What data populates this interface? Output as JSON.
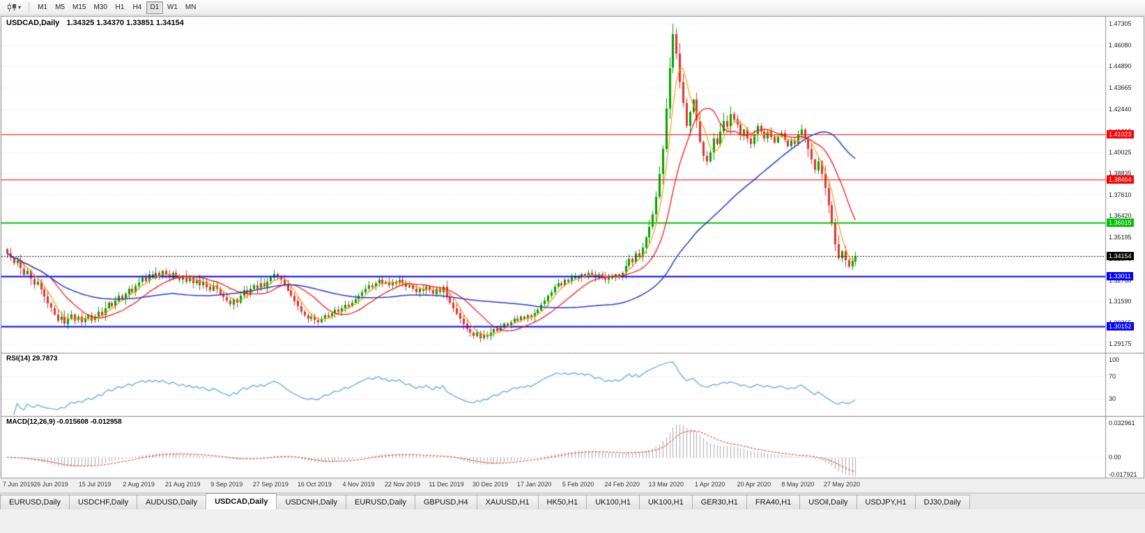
{
  "toolbar": {
    "chart_type_icon": "candlestick-chart-icon",
    "dropdown_icon": "chevron-down-icon",
    "timeframes": [
      "M1",
      "M5",
      "M15",
      "M30",
      "H1",
      "H4",
      "D1",
      "W1",
      "MN"
    ],
    "active_timeframe": "D1"
  },
  "main_chart": {
    "title": "USDCAD,Daily",
    "ohlc": "1.34325 1.34370 1.33851 1.34154"
  },
  "rsi_panel": {
    "label": "RSI(14) 29.7873"
  },
  "macd_panel": {
    "label": "MACD(12,26,9) -0.015608 -0.012958"
  },
  "bottom_tabs": {
    "active_index": 3,
    "items": [
      "EURUSD,Daily",
      "USDCHF,Daily",
      "AUDUSD,Daily",
      "USDCAD,Daily",
      "USDCNH,Daily",
      "EURUSD,Daily",
      "GBPUSD,H4",
      "XAUUSD,H1",
      "HK50,H1",
      "UK100,H1",
      "UK100,H1",
      "GER30,H1",
      "FRA40,H1",
      "USOil,Daily",
      "USDJPY,H1",
      "DJ30,Daily"
    ]
  },
  "colors": {
    "bull": "#00a000",
    "bear": "#e03030",
    "ma_fast_orange": "#ff9900",
    "ma_mid_red": "#ff0000",
    "ma_slow_blue": "#2236cc",
    "rsi_line": "#4da3d8",
    "macd_hist": "#a9a9a9",
    "macd_signal": "#dd2222",
    "level_red": "#ff0000",
    "level_green": "#00c000",
    "level_blue": "#0000ff",
    "grid": "#dcdcdc",
    "panel_border": "#8e8e8e"
  },
  "chart_data": [
    {
      "type": "candlestick",
      "title": "USDCAD,Daily",
      "timeframe": "D1",
      "x_labels": [
        "7 Jun 2019",
        "26 Jun 2019",
        "15 Jul 2019",
        "2 Aug 2019",
        "21 Aug 2019",
        "9 Sep 2019",
        "27 Sep 2019",
        "16 Oct 2019",
        "4 Nov 2019",
        "22 Nov 2019",
        "11 Dec 2019",
        "30 Dec 2019",
        "17 Jan 2020",
        "5 Feb 2020",
        "24 Feb 2020",
        "13 Mar 2020",
        "1 Apr 2020",
        "20 Apr 2020",
        "8 May 2020",
        "27 May 2020"
      ],
      "bars_per_label": 13,
      "y_ticks": [
        1.47305,
        1.4608,
        1.4489,
        1.43665,
        1.4244,
        1.41215,
        1.40025,
        1.38835,
        1.3761,
        1.3642,
        1.35195,
        1.3397,
        1.3278,
        1.3159,
        1.30365,
        1.29175
      ],
      "ylim": [
        1.287,
        1.477
      ],
      "first_open": 1.3455,
      "closes": [
        1.343,
        1.3405,
        1.3375,
        1.339,
        1.3345,
        1.331,
        1.333,
        1.3285,
        1.3255,
        1.327,
        1.3225,
        1.3185,
        1.3145,
        1.312,
        1.3085,
        1.305,
        1.307,
        1.303,
        1.306,
        1.3085,
        1.305,
        1.307,
        1.304,
        1.306,
        1.308,
        1.305,
        1.307,
        1.31,
        1.308,
        1.312,
        1.315,
        1.313,
        1.316,
        1.319,
        1.317,
        1.32,
        1.323,
        1.321,
        1.3245,
        1.3265,
        1.329,
        1.327,
        1.331,
        1.329,
        1.332,
        1.33,
        1.333,
        1.331,
        1.329,
        1.332,
        1.33,
        1.328,
        1.33,
        1.327,
        1.329,
        1.326,
        1.328,
        1.325,
        1.327,
        1.324,
        1.322,
        1.325,
        1.323,
        1.32,
        1.318,
        1.316,
        1.314,
        1.317,
        1.315,
        1.319,
        1.322,
        1.32,
        1.323,
        1.325,
        1.323,
        1.326,
        1.324,
        1.327,
        1.329,
        1.331,
        1.33,
        1.328,
        1.325,
        1.322,
        1.319,
        1.316,
        1.313,
        1.31,
        1.308,
        1.306,
        1.307,
        1.305,
        1.304,
        1.306,
        1.308,
        1.307,
        1.309,
        1.311,
        1.31,
        1.312,
        1.314,
        1.313,
        1.315,
        1.317,
        1.319,
        1.321,
        1.323,
        1.325,
        1.324,
        1.326,
        1.328,
        1.326,
        1.327,
        1.325,
        1.327,
        1.326,
        1.328,
        1.326,
        1.324,
        1.325,
        1.323,
        1.321,
        1.323,
        1.322,
        1.324,
        1.322,
        1.32,
        1.323,
        1.321,
        1.324,
        1.318,
        1.315,
        1.312,
        1.309,
        1.306,
        1.303,
        1.3,
        1.298,
        1.296,
        1.298,
        1.295,
        1.297,
        1.296,
        1.298,
        1.3,
        1.299,
        1.301,
        1.303,
        1.302,
        1.304,
        1.306,
        1.305,
        1.307,
        1.306,
        1.308,
        1.307,
        1.309,
        1.311,
        1.314,
        1.316,
        1.319,
        1.321,
        1.324,
        1.326,
        1.325,
        1.328,
        1.327,
        1.329,
        1.33,
        1.329,
        1.331,
        1.33,
        1.332,
        1.331,
        1.329,
        1.331,
        1.33,
        1.328,
        1.33,
        1.329,
        1.331,
        1.33,
        1.332,
        1.336,
        1.34,
        1.338,
        1.343,
        1.341,
        1.346,
        1.352,
        1.358,
        1.365,
        1.375,
        1.388,
        1.402,
        1.425,
        1.448,
        1.467,
        1.456,
        1.44,
        1.428,
        1.415,
        1.423,
        1.43,
        1.418,
        1.406,
        1.398,
        1.395,
        1.4,
        1.408,
        1.405,
        1.412,
        1.418,
        1.415,
        1.422,
        1.419,
        1.416,
        1.41,
        1.413,
        1.408,
        1.405,
        1.41,
        1.415,
        1.412,
        1.408,
        1.412,
        1.409,
        1.406,
        1.409,
        1.411,
        1.407,
        1.404,
        1.407,
        1.405,
        1.41,
        1.413,
        1.408,
        1.402,
        1.396,
        1.39,
        1.395,
        1.388,
        1.38,
        1.37,
        1.36,
        1.348,
        1.34,
        1.344,
        1.339,
        1.3355,
        1.3385,
        1.34154
      ],
      "last_ohlc": {
        "open": 1.34325,
        "high": 1.3437,
        "low": 1.33851,
        "close": 1.34154
      },
      "levels": [
        {
          "price": 1.41023,
          "label": "1.41023",
          "color": "#ff0000",
          "width": 1,
          "style": "solid"
        },
        {
          "price": 1.38464,
          "label": "1.38464",
          "color": "#ff0000",
          "width": 1,
          "style": "solid"
        },
        {
          "price": 1.36015,
          "label": "1.36015",
          "color": "#00c000",
          "width": 2,
          "style": "solid"
        },
        {
          "price": 1.34154,
          "label": "1.34154",
          "color": "#000000",
          "width": 1,
          "style": "dotted"
        },
        {
          "price": 1.33011,
          "label": "1.33011",
          "color": "#0000ff",
          "width": 2,
          "style": "solid"
        },
        {
          "price": 1.30152,
          "label": "1.30152",
          "color": "#0000ff",
          "width": 2,
          "style": "solid"
        }
      ],
      "moving_averages": [
        {
          "period": 5,
          "color": "#ff9900"
        },
        {
          "period": 14,
          "color": "#ff0000"
        },
        {
          "period": 50,
          "color": "#2236cc"
        }
      ]
    },
    {
      "type": "line",
      "name": "RSI",
      "label": "RSI(14) 29.7873",
      "period": 14,
      "current_value": 29.7873,
      "levels": [
        70,
        30
      ],
      "axis_labels": [
        "100",
        "70",
        "30"
      ],
      "ylim": [
        0,
        100
      ],
      "color": "#4da3d8",
      "derived_from": "closes"
    },
    {
      "type": "bar",
      "name": "MACD",
      "label": "MACD(12,26,9) -0.015608 -0.012958",
      "fast": 12,
      "slow": 26,
      "signal": 9,
      "current_macd": -0.015608,
      "current_signal": -0.012958,
      "axis_labels": [
        "0.032961",
        "0.00",
        "-0.017921"
      ],
      "ylim": [
        -0.017921,
        0.032961
      ],
      "derived_from": "closes"
    }
  ]
}
